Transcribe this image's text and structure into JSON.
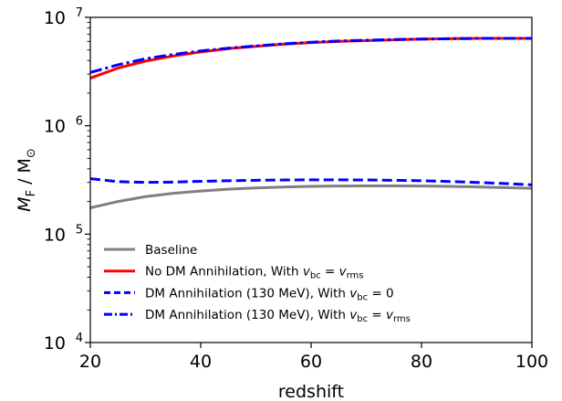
{
  "chart_data": {
    "type": "line",
    "title": "",
    "xlabel": "redshift",
    "ylabel": {
      "prefix": "M",
      "prefix_sub": "F",
      "middle": " / M",
      "suffix_sub": "⊙"
    },
    "xlim": [
      20,
      100
    ],
    "ylim": [
      10000,
      10000000
    ],
    "yscale": "log",
    "grid": false,
    "legend_position": "lower-left",
    "x_ticks": [
      {
        "value": 20,
        "label": "20"
      },
      {
        "value": 40,
        "label": "40"
      },
      {
        "value": 60,
        "label": "60"
      },
      {
        "value": 80,
        "label": "80"
      },
      {
        "value": 100,
        "label": "100"
      }
    ],
    "y_ticks": [
      {
        "value": 10000,
        "base": "10",
        "exp": "4"
      },
      {
        "value": 100000,
        "base": "10",
        "exp": "5"
      },
      {
        "value": 1000000,
        "base": "10",
        "exp": "6"
      },
      {
        "value": 10000000,
        "base": "10",
        "exp": "7"
      }
    ],
    "series": [
      {
        "name": "Baseline",
        "legend_parts": [
          {
            "text": "Baseline"
          }
        ],
        "color": "#808080",
        "dash": "solid",
        "x": [
          20,
          25,
          30,
          35,
          40,
          45,
          50,
          55,
          60,
          65,
          70,
          75,
          80,
          85,
          90,
          95,
          100
        ],
        "y": [
          175000,
          200000,
          222000,
          238000,
          250000,
          260000,
          267000,
          272000,
          276000,
          278000,
          279000,
          279000,
          278000,
          276000,
          273000,
          269000,
          265000
        ]
      },
      {
        "name": "No DM Annihilation, With v_bc = v_rms",
        "legend_parts": [
          {
            "text": "No DM Annihilation, With "
          },
          {
            "text": "v",
            "italic": true
          },
          {
            "text": "bc",
            "sub": true
          },
          {
            "text": " = "
          },
          {
            "text": "v",
            "italic": true
          },
          {
            "text": "rms",
            "sub": true
          }
        ],
        "color": "#ff0000",
        "dash": "solid",
        "x": [
          20,
          25,
          30,
          35,
          40,
          45,
          50,
          55,
          60,
          65,
          70,
          75,
          80,
          85,
          90,
          95,
          100
        ],
        "y": [
          2750000,
          3400000,
          3950000,
          4400000,
          4800000,
          5150000,
          5400000,
          5650000,
          5850000,
          6000000,
          6100000,
          6200000,
          6300000,
          6350000,
          6400000,
          6400000,
          6400000
        ]
      },
      {
        "name": "DM Annihilation (130 MeV), With v_bc = 0",
        "legend_parts": [
          {
            "text": "DM Annihilation (130 MeV), With "
          },
          {
            "text": "v",
            "italic": true
          },
          {
            "text": "bc",
            "sub": true
          },
          {
            "text": " = 0"
          }
        ],
        "color": "#0000ff",
        "dash": "dashed",
        "x": [
          20,
          25,
          30,
          35,
          40,
          45,
          50,
          55,
          60,
          65,
          70,
          75,
          80,
          85,
          90,
          95,
          100
        ],
        "y": [
          325000,
          305000,
          300000,
          302000,
          307000,
          311000,
          314000,
          316000,
          317000,
          317000,
          316000,
          314000,
          311000,
          306000,
          300000,
          293000,
          285000
        ]
      },
      {
        "name": "DM Annihilation (130 MeV), With v_bc = v_rms",
        "legend_parts": [
          {
            "text": "DM Annihilation (130 MeV), With "
          },
          {
            "text": "v",
            "italic": true
          },
          {
            "text": "bc",
            "sub": true
          },
          {
            "text": " = "
          },
          {
            "text": "v",
            "italic": true
          },
          {
            "text": "rms",
            "sub": true
          }
        ],
        "color": "#0000ff",
        "dash": "dashdot",
        "x": [
          20,
          25,
          30,
          35,
          40,
          45,
          50,
          55,
          60,
          65,
          70,
          75,
          80,
          85,
          90,
          95,
          100
        ],
        "y": [
          3100000,
          3650000,
          4150000,
          4550000,
          4900000,
          5200000,
          5450000,
          5700000,
          5900000,
          6050000,
          6150000,
          6250000,
          6300000,
          6350000,
          6400000,
          6400000,
          6400000
        ]
      }
    ]
  }
}
